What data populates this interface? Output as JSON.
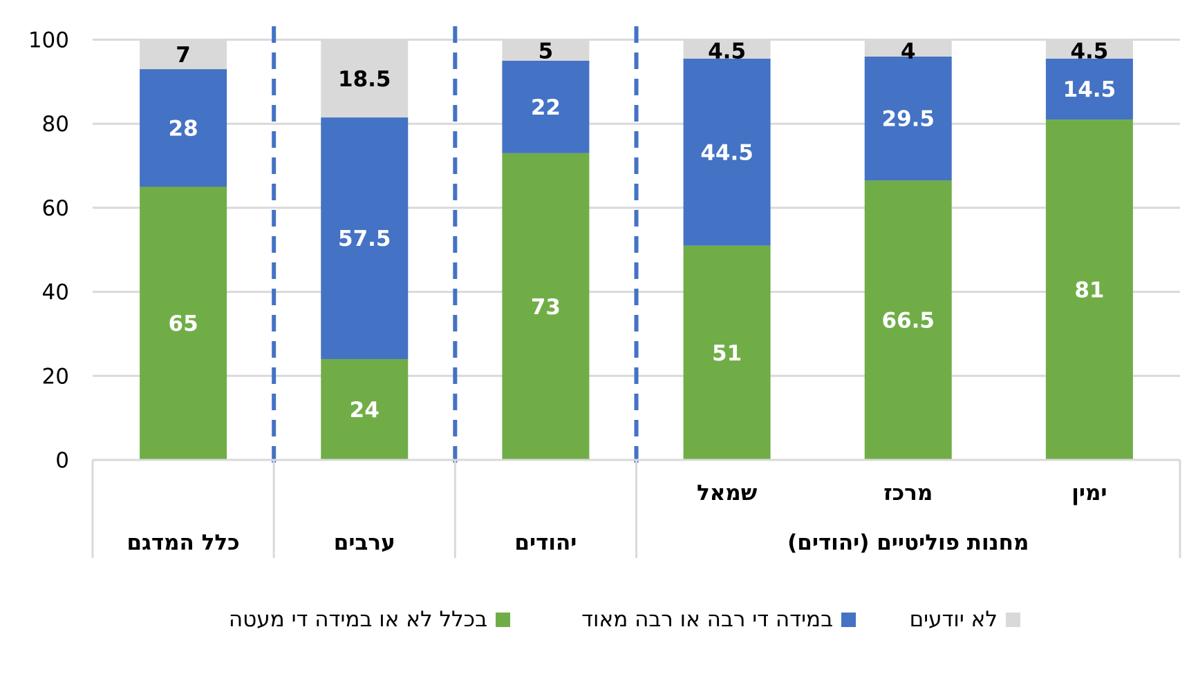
{
  "chart_data": {
    "type": "bar",
    "stacked": true,
    "categories": [
      "כלל המדגם",
      "ערבים",
      "יהודים",
      "שמאל",
      "מרכז",
      "ימין"
    ],
    "group_labels": [
      "כלל המדגם",
      "ערבים",
      "יהודים",
      "מחנות פוליטיים (יהודים)"
    ],
    "group_spans": [
      [
        0,
        0
      ],
      [
        1,
        1
      ],
      [
        2,
        2
      ],
      [
        3,
        5
      ]
    ],
    "series": [
      {
        "name": "בכלל לא או במידה די מעטה",
        "color": "#70AD47",
        "label_color": "#ffffff",
        "values": [
          65,
          24,
          73,
          51,
          66.5,
          81
        ]
      },
      {
        "name": "במידה די רבה או רבה מאוד",
        "color": "#4472C4",
        "label_color": "#ffffff",
        "values": [
          28,
          57.5,
          22,
          44.5,
          29.5,
          14.5
        ]
      },
      {
        "name": "לא יודעים",
        "color": "#D9D9D9",
        "label_color": "#000000",
        "values": [
          7,
          18.5,
          5,
          4.5,
          4,
          4.5
        ]
      }
    ],
    "value_labels": [
      [
        "65",
        "24",
        "73",
        "51",
        "66.5",
        "81"
      ],
      [
        "28",
        "57.5",
        "22",
        "44.5",
        "29.5",
        "14.5"
      ],
      [
        "7",
        "18.5",
        "5",
        "4.5",
        "4",
        "4.5"
      ]
    ],
    "y_ticks": [
      0,
      20,
      40,
      60,
      80,
      100
    ],
    "y_tick_labels": [
      "0",
      "20",
      "40",
      "60",
      "80",
      "100"
    ],
    "ylim": [
      0,
      100
    ],
    "grid": true,
    "grid_color": "#D9D9D9",
    "separator_color": "#4472C4",
    "legend_position": "bottom",
    "legend_order": [
      2,
      1,
      0
    ],
    "title": "",
    "xlabel": "",
    "ylabel": ""
  }
}
